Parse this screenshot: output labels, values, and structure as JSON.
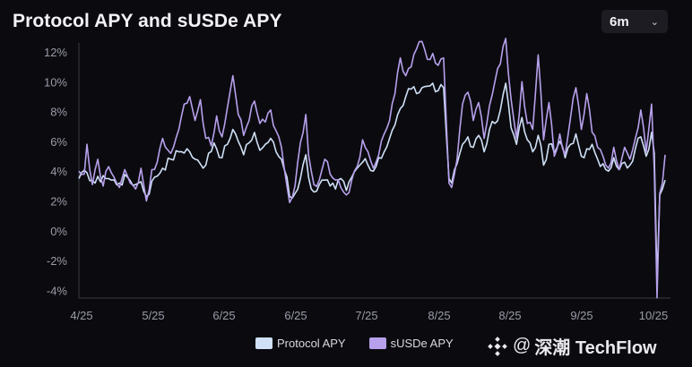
{
  "header": {
    "title": "Protocol APY and sUSDe APY"
  },
  "range_select": {
    "value": "6m",
    "chevron": "chevron-down-icon"
  },
  "legend": {
    "items": [
      {
        "label": "Protocol APY",
        "color": "#cfe0f7"
      },
      {
        "label": "sUSDe APY",
        "color": "#b7a0ec"
      }
    ]
  },
  "watermark": {
    "at": "@",
    "text": "深潮 TechFlow"
  },
  "chart_data": {
    "type": "line",
    "title": "Protocol APY and sUSDe APY",
    "xlabel": "",
    "ylabel": "",
    "x_ticks": [
      "4/25",
      "5/25",
      "6/25",
      "6/25",
      "7/25",
      "8/25",
      "8/25",
      "9/25",
      "10/25"
    ],
    "y_ticks": [
      "12%",
      "10%",
      "8%",
      "6%",
      "4%",
      "2%",
      "0%",
      "-2%",
      "-4%"
    ],
    "ylim": [
      -4.5,
      13
    ],
    "x_count": 218,
    "series": [
      {
        "name": "Protocol APY",
        "color": "#cfe0f7",
        "anchors": [
          [
            0,
            3.5
          ],
          [
            3,
            3.9
          ],
          [
            6,
            3.2
          ],
          [
            9,
            3.7
          ],
          [
            12,
            3.4
          ],
          [
            15,
            3.2
          ],
          [
            18,
            3.6
          ],
          [
            21,
            3.1
          ],
          [
            23,
            3.3
          ],
          [
            25,
            2.3
          ],
          [
            28,
            3.6
          ],
          [
            31,
            4.2
          ],
          [
            34,
            4.8
          ],
          [
            37,
            5.3
          ],
          [
            40,
            5.5
          ],
          [
            43,
            4.8
          ],
          [
            46,
            4.2
          ],
          [
            48,
            5.2
          ],
          [
            50,
            5.9
          ],
          [
            53,
            4.9
          ],
          [
            55,
            5.8
          ],
          [
            57,
            6.8
          ],
          [
            59,
            6.0
          ],
          [
            61,
            5.1
          ],
          [
            63,
            5.9
          ],
          [
            65,
            6.6
          ],
          [
            67,
            5.4
          ],
          [
            69,
            5.8
          ],
          [
            71,
            6.2
          ],
          [
            73,
            5.3
          ],
          [
            75,
            4.8
          ],
          [
            77,
            3.6
          ],
          [
            78,
            2.3
          ],
          [
            80,
            2.5
          ],
          [
            82,
            3.5
          ],
          [
            84,
            5.1
          ],
          [
            85,
            3.6
          ],
          [
            87,
            2.6
          ],
          [
            89,
            3.1
          ],
          [
            91,
            3.4
          ],
          [
            93,
            3.0
          ],
          [
            95,
            2.8
          ],
          [
            97,
            3.5
          ],
          [
            99,
            2.7
          ],
          [
            101,
            3.6
          ],
          [
            103,
            4.2
          ],
          [
            105,
            4.6
          ],
          [
            107,
            4.4
          ],
          [
            109,
            4.0
          ],
          [
            111,
            4.9
          ],
          [
            113,
            5.3
          ],
          [
            115,
            6.2
          ],
          [
            117,
            7.1
          ],
          [
            119,
            8.2
          ],
          [
            121,
            9.0
          ],
          [
            123,
            9.5
          ],
          [
            125,
            9.2
          ],
          [
            127,
            9.6
          ],
          [
            129,
            9.7
          ],
          [
            131,
            9.9
          ],
          [
            133,
            9.4
          ],
          [
            135,
            9.6
          ],
          [
            137,
            3.5
          ],
          [
            138,
            3.2
          ],
          [
            140,
            4.5
          ],
          [
            142,
            5.8
          ],
          [
            144,
            6.3
          ],
          [
            146,
            5.6
          ],
          [
            148,
            6.4
          ],
          [
            150,
            5.3
          ],
          [
            152,
            6.8
          ],
          [
            154,
            7.2
          ],
          [
            156,
            8.1
          ],
          [
            158,
            9.9
          ],
          [
            160,
            6.9
          ],
          [
            162,
            5.8
          ],
          [
            164,
            7.6
          ],
          [
            166,
            6.1
          ],
          [
            168,
            5.3
          ],
          [
            170,
            6.4
          ],
          [
            172,
            4.4
          ],
          [
            174,
            5.8
          ],
          [
            176,
            5.2
          ],
          [
            178,
            6.0
          ],
          [
            180,
            4.9
          ],
          [
            182,
            5.8
          ],
          [
            184,
            6.5
          ],
          [
            186,
            5.0
          ],
          [
            188,
            5.5
          ],
          [
            190,
            5.8
          ],
          [
            192,
            4.8
          ],
          [
            194,
            4.5
          ],
          [
            196,
            4.0
          ],
          [
            198,
            4.9
          ],
          [
            200,
            4.1
          ],
          [
            202,
            4.6
          ],
          [
            204,
            4.4
          ],
          [
            206,
            5.5
          ],
          [
            208,
            6.3
          ],
          [
            210,
            5.0
          ],
          [
            212,
            6.6
          ],
          [
            213,
            5.2
          ],
          [
            214,
            -3.4
          ],
          [
            215,
            2.4
          ],
          [
            216,
            2.8
          ],
          [
            217,
            3.4
          ]
        ]
      },
      {
        "name": "sUSDe APY",
        "color": "#b7a0ec",
        "anchors": [
          [
            0,
            4.0
          ],
          [
            2,
            3.8
          ],
          [
            3,
            5.8
          ],
          [
            5,
            3.1
          ],
          [
            7,
            4.8
          ],
          [
            9,
            3.0
          ],
          [
            11,
            4.3
          ],
          [
            13,
            3.6
          ],
          [
            15,
            2.9
          ],
          [
            17,
            4.1
          ],
          [
            19,
            3.2
          ],
          [
            21,
            2.8
          ],
          [
            23,
            4.2
          ],
          [
            25,
            2.0
          ],
          [
            27,
            4.1
          ],
          [
            29,
            4.6
          ],
          [
            31,
            6.2
          ],
          [
            33,
            5.4
          ],
          [
            35,
            5.6
          ],
          [
            37,
            6.8
          ],
          [
            39,
            8.5
          ],
          [
            41,
            9.0
          ],
          [
            43,
            7.4
          ],
          [
            45,
            8.8
          ],
          [
            47,
            6.2
          ],
          [
            49,
            5.7
          ],
          [
            51,
            7.7
          ],
          [
            53,
            6.3
          ],
          [
            55,
            8.3
          ],
          [
            57,
            10.4
          ],
          [
            59,
            7.8
          ],
          [
            61,
            6.4
          ],
          [
            63,
            7.4
          ],
          [
            65,
            8.7
          ],
          [
            67,
            7.2
          ],
          [
            69,
            7.3
          ],
          [
            71,
            8.1
          ],
          [
            73,
            6.7
          ],
          [
            75,
            5.6
          ],
          [
            77,
            3.0
          ],
          [
            78,
            1.9
          ],
          [
            80,
            3.0
          ],
          [
            82,
            5.9
          ],
          [
            84,
            7.8
          ],
          [
            85,
            5.1
          ],
          [
            87,
            3.1
          ],
          [
            89,
            3.4
          ],
          [
            91,
            4.8
          ],
          [
            93,
            3.8
          ],
          [
            95,
            3.4
          ],
          [
            97,
            2.9
          ],
          [
            99,
            2.4
          ],
          [
            101,
            3.4
          ],
          [
            103,
            4.3
          ],
          [
            105,
            6.1
          ],
          [
            107,
            5.3
          ],
          [
            109,
            4.2
          ],
          [
            111,
            5.1
          ],
          [
            113,
            6.5
          ],
          [
            115,
            7.4
          ],
          [
            117,
            9.2
          ],
          [
            119,
            11.6
          ],
          [
            121,
            10.4
          ],
          [
            123,
            11.0
          ],
          [
            125,
            12.2
          ],
          [
            127,
            12.7
          ],
          [
            129,
            11.5
          ],
          [
            131,
            11.9
          ],
          [
            133,
            11.1
          ],
          [
            135,
            11.6
          ],
          [
            137,
            3.2
          ],
          [
            138,
            2.9
          ],
          [
            140,
            4.8
          ],
          [
            142,
            8.5
          ],
          [
            144,
            9.3
          ],
          [
            146,
            7.4
          ],
          [
            148,
            8.6
          ],
          [
            150,
            6.2
          ],
          [
            152,
            8.4
          ],
          [
            154,
            10.0
          ],
          [
            156,
            11.2
          ],
          [
            158,
            12.9
          ],
          [
            160,
            8.8
          ],
          [
            162,
            6.2
          ],
          [
            164,
            10.0
          ],
          [
            166,
            7.2
          ],
          [
            168,
            6.8
          ],
          [
            170,
            11.8
          ],
          [
            172,
            6.1
          ],
          [
            174,
            8.6
          ],
          [
            176,
            5.0
          ],
          [
            178,
            6.5
          ],
          [
            180,
            5.1
          ],
          [
            182,
            7.6
          ],
          [
            184,
            9.6
          ],
          [
            186,
            6.8
          ],
          [
            188,
            9.2
          ],
          [
            190,
            6.6
          ],
          [
            192,
            5.6
          ],
          [
            194,
            5.0
          ],
          [
            196,
            4.2
          ],
          [
            198,
            5.6
          ],
          [
            200,
            4.1
          ],
          [
            202,
            5.6
          ],
          [
            204,
            4.8
          ],
          [
            206,
            6.2
          ],
          [
            208,
            8.1
          ],
          [
            210,
            5.3
          ],
          [
            212,
            8.5
          ],
          [
            213,
            4.1
          ],
          [
            214,
            -4.5
          ],
          [
            215,
            2.5
          ],
          [
            216,
            3.2
          ],
          [
            217,
            5.1
          ]
        ]
      }
    ]
  }
}
